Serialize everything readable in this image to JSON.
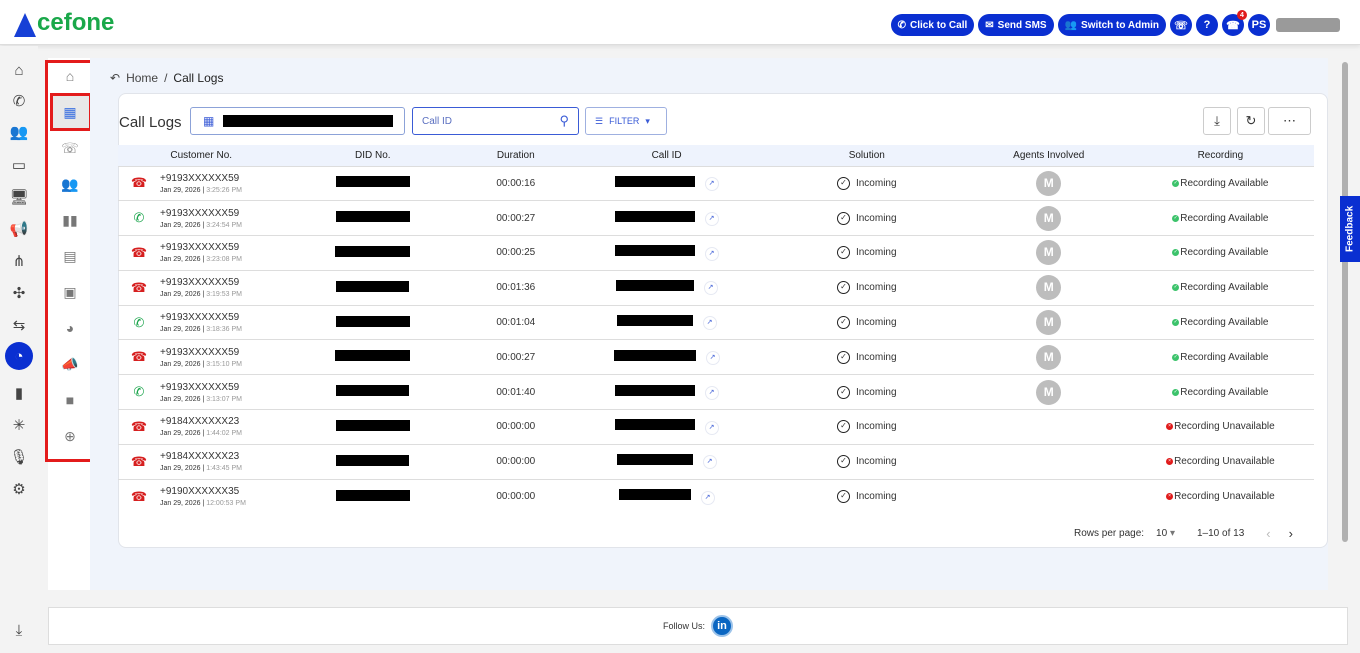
{
  "brand": {
    "name": "cefone",
    "logo_letter": "A",
    "colors": {
      "primary": "#0a2fd1",
      "green": "#1aa84a",
      "red": "#d61f1f"
    }
  },
  "header": {
    "click_to_call": "Click to Call",
    "send_sms": "Send SMS",
    "switch_admin": "Switch to Admin",
    "help": "?",
    "missed_badge": "4",
    "avatar": "PS"
  },
  "breadcrumb": {
    "home": "Home",
    "sep": "/",
    "current": "Call Logs"
  },
  "toolbar": {
    "title": "Call Logs",
    "search_placeholder": "Call ID",
    "filter": "FILTER"
  },
  "table": {
    "columns": [
      "Customer No.",
      "DID No.",
      "Duration",
      "Call ID",
      "Solution",
      "Agents Involved",
      "Recording"
    ],
    "rows": [
      {
        "dir": "out",
        "number": "+9193XXXXXX59",
        "date": "Jan 29, 2026",
        "time": "3:25:26 PM",
        "duration": "00:00:16",
        "solution": "Incoming",
        "agent": "M",
        "recording": "Recording Available",
        "rec_ok": true
      },
      {
        "dir": "in",
        "number": "+9193XXXXXX59",
        "date": "Jan 29, 2026",
        "time": "3:24:54 PM",
        "duration": "00:00:27",
        "solution": "Incoming",
        "agent": "M",
        "recording": "Recording Available",
        "rec_ok": true
      },
      {
        "dir": "out",
        "number": "+9193XXXXXX59",
        "date": "Jan 29, 2026",
        "time": "3:23:08 PM",
        "duration": "00:00:25",
        "solution": "Incoming",
        "agent": "M",
        "recording": "Recording Available",
        "rec_ok": true
      },
      {
        "dir": "out",
        "number": "+9193XXXXXX59",
        "date": "Jan 29, 2026",
        "time": "3:19:53 PM",
        "duration": "00:01:36",
        "solution": "Incoming",
        "agent": "M",
        "recording": "Recording Available",
        "rec_ok": true
      },
      {
        "dir": "in",
        "number": "+9193XXXXXX59",
        "date": "Jan 29, 2026",
        "time": "3:18:36 PM",
        "duration": "00:01:04",
        "solution": "Incoming",
        "agent": "M",
        "recording": "Recording Available",
        "rec_ok": true
      },
      {
        "dir": "out",
        "number": "+9193XXXXXX59",
        "date": "Jan 29, 2026",
        "time": "3:15:10 PM",
        "duration": "00:00:27",
        "solution": "Incoming",
        "agent": "M",
        "recording": "Recording Available",
        "rec_ok": true
      },
      {
        "dir": "in",
        "number": "+9193XXXXXX59",
        "date": "Jan 29, 2026",
        "time": "3:13:07 PM",
        "duration": "00:01:40",
        "solution": "Incoming",
        "agent": "M",
        "recording": "Recording Available",
        "rec_ok": true
      },
      {
        "dir": "out",
        "number": "+9184XXXXXX23",
        "date": "Jan 29, 2026",
        "time": "1:44:02 PM",
        "duration": "00:00:00",
        "solution": "Incoming",
        "agent": "",
        "recording": "Recording Unavailable",
        "rec_ok": false
      },
      {
        "dir": "out",
        "number": "+9184XXXXXX23",
        "date": "Jan 29, 2026",
        "time": "1:43:45 PM",
        "duration": "00:00:00",
        "solution": "Incoming",
        "agent": "",
        "recording": "Recording Unavailable",
        "rec_ok": false
      },
      {
        "dir": "out",
        "number": "+9190XXXXXX35",
        "date": "Jan 29, 2026",
        "time": "12:00:53 PM",
        "duration": "00:00:00",
        "solution": "Incoming",
        "agent": "",
        "recording": "Recording Unavailable",
        "rec_ok": false
      }
    ]
  },
  "pagination": {
    "rows_label": "Rows per page:",
    "rows_value": "10",
    "range": "1–10 of 13"
  },
  "feedback": "Feedback",
  "footer": {
    "follow": "Follow Us:",
    "linkedin": "in"
  },
  "rail_icons": [
    "home-icon",
    "phone-icon",
    "users-icon",
    "wallet-icon",
    "monitor-settings-icon",
    "megaphone-icon",
    "network-icon",
    "integration-icon",
    "routing-icon",
    "reports-icon",
    "bar-chart-icon",
    "hub-icon",
    "microphone-icon",
    "settings-icon",
    "download-icon"
  ],
  "sub_icons": [
    "home-icon",
    "table-icon",
    "call-analytics-icon",
    "agents-icon",
    "premium-chart-icon",
    "message-list-icon",
    "report-card-icon",
    "pie-chart-icon",
    "campaign-icon",
    "video-icon",
    "download-circle-icon"
  ]
}
